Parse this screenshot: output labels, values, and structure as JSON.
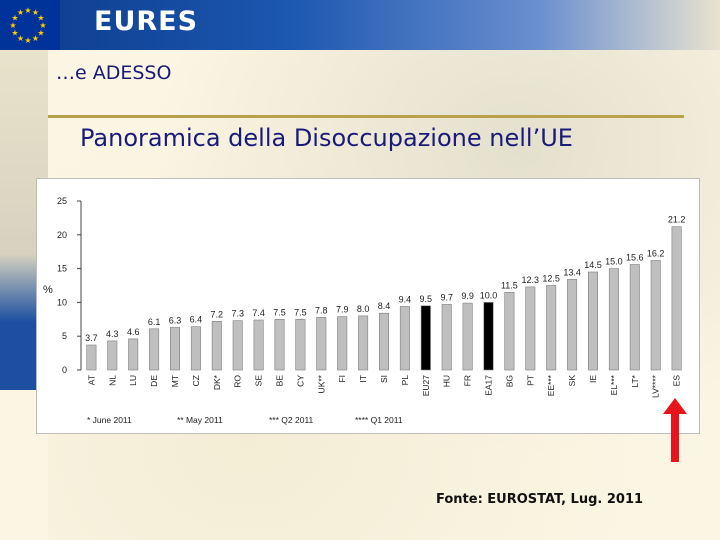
{
  "header": {
    "logo_text": "EURES",
    "flag_icon": "eu-flag-icon"
  },
  "section_title": "…e ADESSO",
  "slide_title": "Panoramica della Disoccupazione nell’UE",
  "source": "Fonte: EUROSTAT, Lug. 2011",
  "colors": {
    "bar_default": "#bfbfbf",
    "bar_highlight": "#000000",
    "arrow": "#e8141b",
    "title_text": "#1a1a7a"
  },
  "chart_data": {
    "type": "bar",
    "title": "",
    "xlabel": "",
    "ylabel": "%",
    "ylim": [
      0,
      25
    ],
    "yticks": [
      0,
      5,
      10,
      15,
      20,
      25
    ],
    "grid": false,
    "categories": [
      "AT",
      "NL",
      "LU",
      "DE",
      "MT",
      "CZ",
      "DK*",
      "RO",
      "SE",
      "BE",
      "CY",
      "UK**",
      "FI",
      "IT",
      "SI",
      "PL",
      "EU27",
      "HU",
      "FR",
      "EA17",
      "BG",
      "PT",
      "EE***",
      "SK",
      "IE",
      "EL***",
      "LT*",
      "LV****",
      "ES"
    ],
    "values": [
      3.7,
      4.3,
      4.6,
      6.1,
      6.3,
      6.4,
      7.2,
      7.3,
      7.4,
      7.5,
      7.5,
      7.8,
      7.9,
      8.0,
      8.4,
      9.4,
      9.5,
      9.7,
      9.9,
      10.0,
      11.5,
      12.3,
      12.5,
      13.4,
      14.5,
      15.0,
      15.6,
      16.2,
      21.2
    ],
    "value_labels": [
      "3.7",
      "4.3",
      "4.6",
      "6.1",
      "6.3",
      "6.4",
      "7.2",
      "7.3",
      "7.4",
      "7.5",
      "7.5",
      "7.8",
      "7.9",
      "8.0",
      "8.4",
      "9.4",
      "9.5",
      "9.7",
      "9.9",
      "10.0",
      "11.5",
      "12.3",
      "12.5",
      "13.4",
      "14.5",
      "15.0",
      "15.6",
      "16.2",
      "21.2"
    ],
    "highlighted": [
      "EU27",
      "EA17"
    ],
    "footnotes": [
      "* June 2011",
      "** May 2011",
      "*** Q2 2011",
      "**** Q1 2011"
    ]
  }
}
